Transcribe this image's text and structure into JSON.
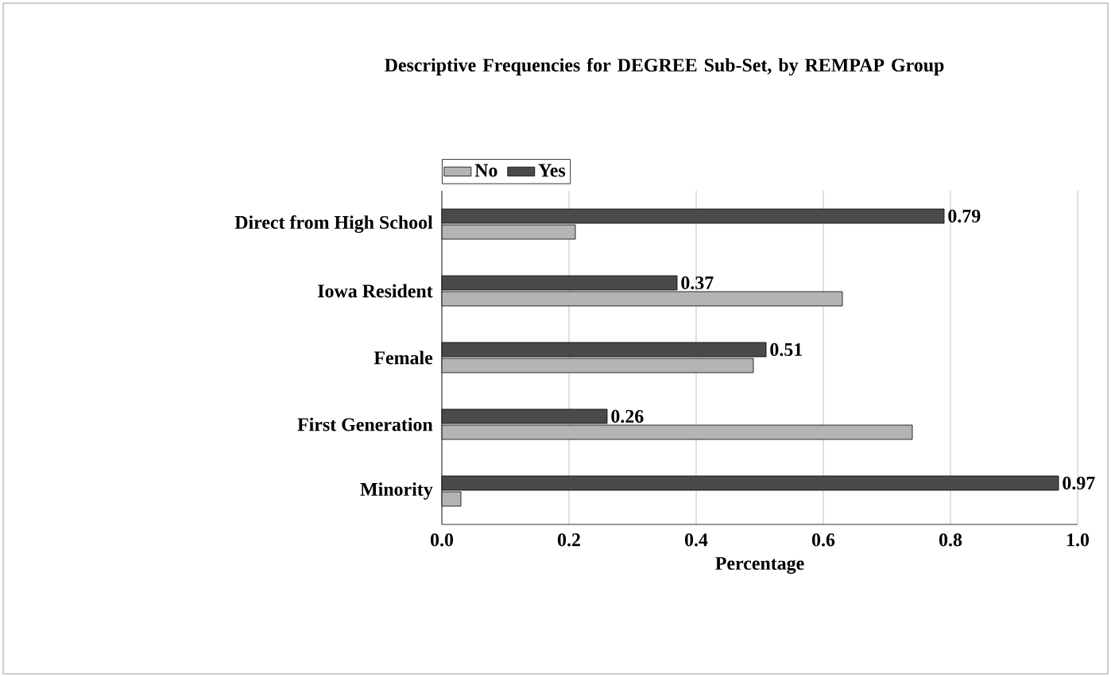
{
  "chart_data": {
    "type": "bar",
    "orientation": "horizontal",
    "title": "Descriptive Frequencies for DEGREE Sub-Set, by REMPAP Group",
    "xlabel": "Percentage",
    "categories": [
      "Direct from High School",
      "Iowa Resident",
      "Female",
      "First Generation",
      "Minority"
    ],
    "series": [
      {
        "name": "No",
        "color": "#b4b4b4",
        "values": [
          0.21,
          0.63,
          0.49,
          0.74,
          0.03
        ]
      },
      {
        "name": "Yes",
        "color": "#4a4a4a",
        "values": [
          0.79,
          0.37,
          0.51,
          0.26,
          0.97
        ],
        "value_labels": [
          "0.79",
          "0.37",
          "0.51",
          "0.26",
          "0.97"
        ]
      }
    ],
    "xlim": [
      0,
      1
    ],
    "xticks": [
      {
        "value": 0,
        "label": "0.0"
      },
      0.2,
      0.4,
      0.6,
      0.8,
      {
        "value": 1,
        "label": "1.0"
      }
    ],
    "grid": "x",
    "legend": "top left"
  }
}
